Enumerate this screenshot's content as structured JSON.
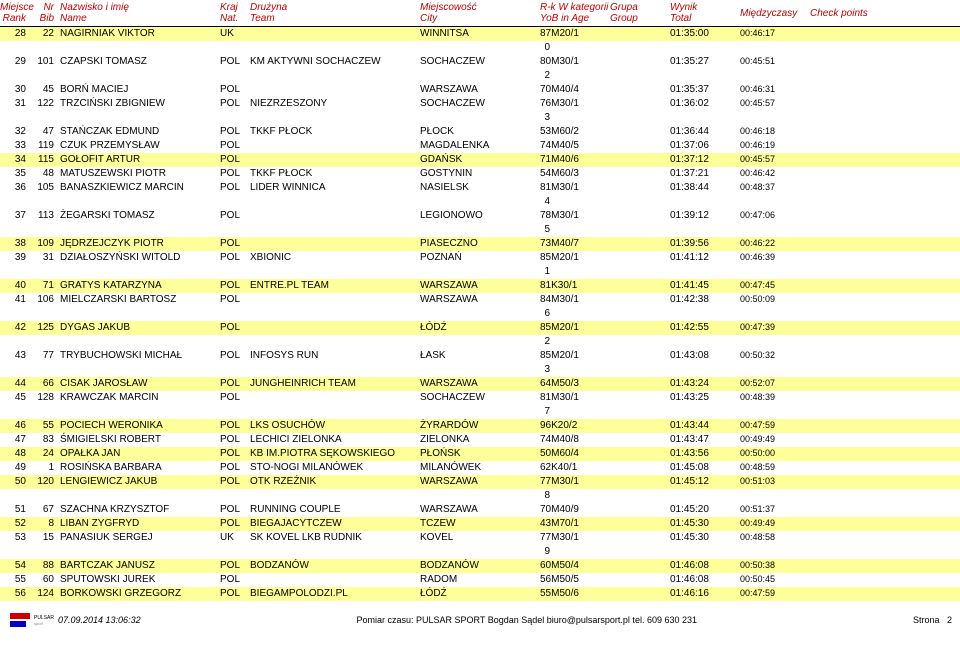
{
  "header": {
    "rank1": "Miejsce",
    "rank2": "Rank",
    "bib1": "Nr",
    "bib2": "Bib",
    "name1": "Nazwisko i imię",
    "name2": "Name",
    "nat1": "Kraj",
    "nat2": "Nat.",
    "team1": "Drużyna",
    "team2": "Team",
    "city1": "Miejscowość",
    "city2": "City",
    "cat1": "R-k  W kategorii",
    "cat2": "YoB  in Age",
    "group1": "Grupa",
    "group2": "Group",
    "total1": "Wynik",
    "total2": "Total",
    "split1": "Międzyczasy",
    "check1": "Check points"
  },
  "rows": [
    {
      "rank": "28",
      "bib": "22",
      "name": "NAGIRNIAK VIKTOR",
      "nat": "UK",
      "team": "",
      "city": "WINNITSA",
      "cat": "87M20/1",
      "total": "01:35:00",
      "split": "00:46:17",
      "yellow": true
    },
    {
      "group": "0"
    },
    {
      "rank": "29",
      "bib": "101",
      "name": "CZAPSKI TOMASZ",
      "nat": "POL",
      "team": "KM AKTYWNI SOCHACZEW",
      "city": "SOCHACZEW",
      "cat": "80M30/1",
      "total": "01:35:27",
      "split": "00:45:51"
    },
    {
      "group": "2"
    },
    {
      "rank": "30",
      "bib": "45",
      "name": "BORŃ MACIEJ",
      "nat": "POL",
      "team": "",
      "city": "WARSZAWA",
      "cat": "70M40/4",
      "total": "01:35:37",
      "split": "00:46:31"
    },
    {
      "rank": "31",
      "bib": "122",
      "name": "TRZCIŃSKI ZBIGNIEW",
      "nat": "POL",
      "team": "NIEZRZESZONY",
      "city": "SOCHACZEW",
      "cat": "76M30/1",
      "total": "01:36:02",
      "split": "00:45:57"
    },
    {
      "group": "3"
    },
    {
      "rank": "32",
      "bib": "47",
      "name": "STAŃCZAK EDMUND",
      "nat": "POL",
      "team": "TKKF PŁOCK",
      "city": "PŁOCK",
      "cat": "53M60/2",
      "total": "01:36:44",
      "split": "00:46:18"
    },
    {
      "rank": "33",
      "bib": "119",
      "name": "CZUK PRZEMYSŁAW",
      "nat": "POL",
      "team": "",
      "city": "MAGDALENKA",
      "cat": "74M40/5",
      "total": "01:37:06",
      "split": "00:46:19"
    },
    {
      "rank": "34",
      "bib": "115",
      "name": "GOŁOFIT ARTUR",
      "nat": "POL",
      "team": "",
      "city": "GDAŃSK",
      "cat": "71M40/6",
      "total": "01:37:12",
      "split": "00:45:57",
      "yellow": true
    },
    {
      "rank": "35",
      "bib": "48",
      "name": "MATUSZEWSKI PIOTR",
      "nat": "POL",
      "team": "TKKF PŁOCK",
      "city": "GOSTYNIN",
      "cat": "54M60/3",
      "total": "01:37:21",
      "split": "00:46:42"
    },
    {
      "rank": "36",
      "bib": "105",
      "name": "BANASZKIEWICZ MARCIN",
      "nat": "POL",
      "team": "LIDER WINNICA",
      "city": "NASIELSK",
      "cat": "81M30/1",
      "total": "01:38:44",
      "split": "00:48:37"
    },
    {
      "group": "4"
    },
    {
      "rank": "37",
      "bib": "113",
      "name": "ŻEGARSKI TOMASZ",
      "nat": "POL",
      "team": "",
      "city": "LEGIONOWO",
      "cat": "78M30/1",
      "total": "01:39:12",
      "split": "00:47:06"
    },
    {
      "group": "5"
    },
    {
      "rank": "38",
      "bib": "109",
      "name": "JĘDRZEJCZYK PIOTR",
      "nat": "POL",
      "team": "",
      "city": "PIASECZNO",
      "cat": "73M40/7",
      "total": "01:39:56",
      "split": "00:46:22",
      "yellow": true
    },
    {
      "rank": "39",
      "bib": "31",
      "name": "DZIAŁOSZYŃSKI WITOLD",
      "nat": "POL",
      "team": "XBIONIC",
      "city": "POZNAŃ",
      "cat": "85M20/1",
      "total": "01:41:12",
      "split": "00:46:39"
    },
    {
      "group": "1"
    },
    {
      "rank": "40",
      "bib": "71",
      "name": "GRATYS KATARZYNA",
      "nat": "POL",
      "team": "ENTRE.PL TEAM",
      "city": "WARSZAWA",
      "cat": "81K30/1",
      "total": "01:41:45",
      "split": "00:47:45",
      "yellow": true
    },
    {
      "rank": "41",
      "bib": "106",
      "name": "MIELCZARSKI BARTOSZ",
      "nat": "POL",
      "team": "",
      "city": "WARSZAWA",
      "cat": "84M30/1",
      "total": "01:42:38",
      "split": "00:50:09"
    },
    {
      "group": "6"
    },
    {
      "rank": "42",
      "bib": "125",
      "name": "DYGAS JAKUB",
      "nat": "POL",
      "team": "",
      "city": "ŁÓDŹ",
      "cat": "85M20/1",
      "total": "01:42:55",
      "split": "00:47:39",
      "yellow": true
    },
    {
      "group": "2"
    },
    {
      "rank": "43",
      "bib": "77",
      "name": "TRYBUCHOWSKI MICHAŁ",
      "nat": "POL",
      "team": "INFOSYS RUN",
      "city": "ŁASK",
      "cat": "85M20/1",
      "total": "01:43:08",
      "split": "00:50:32"
    },
    {
      "group": "3"
    },
    {
      "rank": "44",
      "bib": "66",
      "name": "CISAK JAROSŁAW",
      "nat": "POL",
      "team": "JUNGHEINRICH TEAM",
      "city": "WARSZAWA",
      "cat": "64M50/3",
      "total": "01:43:24",
      "split": "00:52:07",
      "yellow": true
    },
    {
      "rank": "45",
      "bib": "128",
      "name": "KRAWCZAK MARCIN",
      "nat": "POL",
      "team": "",
      "city": "SOCHACZEW",
      "cat": "81M30/1",
      "total": "01:43:25",
      "split": "00:48:39"
    },
    {
      "group": "7"
    },
    {
      "rank": "46",
      "bib": "55",
      "name": "POCIECH WERONIKA",
      "nat": "POL",
      "team": "LKS OSUCHÓW",
      "city": "ŻYRARDÓW",
      "cat": "96K20/2",
      "total": "01:43:44",
      "split": "00:47:59",
      "yellow": true
    },
    {
      "rank": "47",
      "bib": "83",
      "name": "ŚMIGIELSKI ROBERT",
      "nat": "POL",
      "team": "LECHICI ZIELONKA",
      "city": "ZIELONKA",
      "cat": "74M40/8",
      "total": "01:43:47",
      "split": "00:49:49"
    },
    {
      "rank": "48",
      "bib": "24",
      "name": "OPAŁKA JAN",
      "nat": "POL",
      "team": "KB IM.PIOTRA SĘKOWSKIEGO",
      "city": "PŁOŃSK",
      "cat": "50M60/4",
      "total": "01:43:56",
      "split": "00:50:00",
      "yellow": true
    },
    {
      "rank": "49",
      "bib": "1",
      "name": "ROSIŃSKA BARBARA",
      "nat": "POL",
      "team": "STO-NOGI MILANÓWEK",
      "city": "MILANÓWEK",
      "cat": "62K40/1",
      "total": "01:45:08",
      "split": "00:48:59"
    },
    {
      "rank": "50",
      "bib": "120",
      "name": "LENGIEWICZ JAKUB",
      "nat": "POL",
      "team": "OTK RZEŹNIK",
      "city": "WARSZAWA",
      "cat": "77M30/1",
      "total": "01:45:12",
      "split": "00:51:03",
      "yellow": true
    },
    {
      "group": "8"
    },
    {
      "rank": "51",
      "bib": "67",
      "name": "SZACHNA KRZYSZTOF",
      "nat": "POL",
      "team": "RUNNING COUPLE",
      "city": "WARSZAWA",
      "cat": "70M40/9",
      "total": "01:45:20",
      "split": "00:51:37"
    },
    {
      "rank": "52",
      "bib": "8",
      "name": "LIBAN ZYGFRYD",
      "nat": "POL",
      "team": "BIEGAJACYTCZEW",
      "city": "TCZEW",
      "cat": "43M70/1",
      "total": "01:45:30",
      "split": "00:49:49",
      "yellow": true
    },
    {
      "rank": "53",
      "bib": "15",
      "name": "PANASIUK SERGEJ",
      "nat": "UK",
      "team": "SK KOVEL LKB  RUDNIK",
      "city": "KOVEL",
      "cat": "77M30/1",
      "total": "01:45:30",
      "split": "00:48:58"
    },
    {
      "group": "9"
    },
    {
      "rank": "54",
      "bib": "88",
      "name": "BARTCZAK JANUSZ",
      "nat": "POL",
      "team": "BODZANÓW",
      "city": "BODZANÓW",
      "cat": "60M50/4",
      "total": "01:46:08",
      "split": "00:50:38",
      "yellow": true
    },
    {
      "rank": "55",
      "bib": "60",
      "name": "SPUTOWSKI JUREK",
      "nat": "POL",
      "team": "",
      "city": "RADOM",
      "cat": "56M50/5",
      "total": "01:46:08",
      "split": "00:50:45"
    },
    {
      "rank": "56",
      "bib": "124",
      "name": "BORKOWSKI GRZEGORZ",
      "nat": "POL",
      "team": "BIEGAMPOLODZI.PL",
      "city": "ŁÓDŹ",
      "cat": "55M50/6",
      "total": "01:46:16",
      "split": "00:47:59",
      "yellow": true
    }
  ],
  "footer": {
    "timestamp": "07.09.2014 13:06:32",
    "center": "Pomiar czasu: PULSAR SPORT Bogdan Sądel biuro@pulsarsport.pl tel. 609 630 231",
    "page_label": "Strona",
    "page_num": "2"
  }
}
